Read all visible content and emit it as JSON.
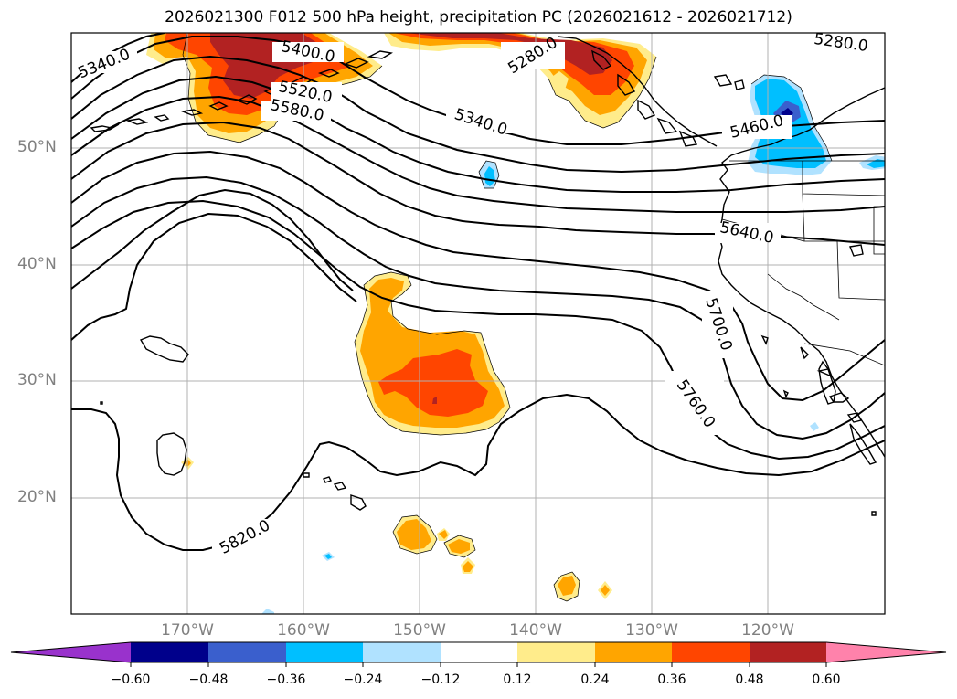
{
  "title": "2026021300 F012 500 hPa height, precipitation PC (2026021612 - 2026021712)",
  "lat_labels": [
    {
      "text": "50°N",
      "lat": 50
    },
    {
      "text": "40°N",
      "lat": 40
    },
    {
      "text": "30°N",
      "lat": 30
    },
    {
      "text": "20°N",
      "lat": 20
    }
  ],
  "lon_labels": [
    {
      "text": "170°W",
      "lon": -170
    },
    {
      "text": "160°W",
      "lon": -160
    },
    {
      "text": "150°W",
      "lon": -150
    },
    {
      "text": "140°W",
      "lon": -140
    },
    {
      "text": "130°W",
      "lon": -130
    },
    {
      "text": "120°W",
      "lon": -120
    }
  ],
  "contour_labels": [
    {
      "text": "5340.0"
    },
    {
      "text": "5400.0"
    },
    {
      "text": "5520.0"
    },
    {
      "text": "5580.0"
    },
    {
      "text": "5280.0"
    },
    {
      "text": "5280.0"
    },
    {
      "text": "5340.0"
    },
    {
      "text": "5460.0"
    },
    {
      "text": "5640.0"
    },
    {
      "text": "5700.0"
    },
    {
      "text": "5760.0"
    },
    {
      "text": "5820.0"
    }
  ],
  "colorbar": {
    "ticks": [
      "−0.60",
      "−0.48",
      "−0.36",
      "−0.24",
      "−0.12",
      "0.12",
      "0.24",
      "0.36",
      "0.48",
      "0.60"
    ],
    "colors": {
      "under": "#9932cc",
      "bins": [
        "#00008b",
        "#3a5fcd",
        "#00bfff",
        "#b0e2ff",
        "#ffffff",
        "#ffec8b",
        "#ffa500",
        "#ff4500",
        "#b22222"
      ],
      "over": "#ff82ab"
    }
  }
}
